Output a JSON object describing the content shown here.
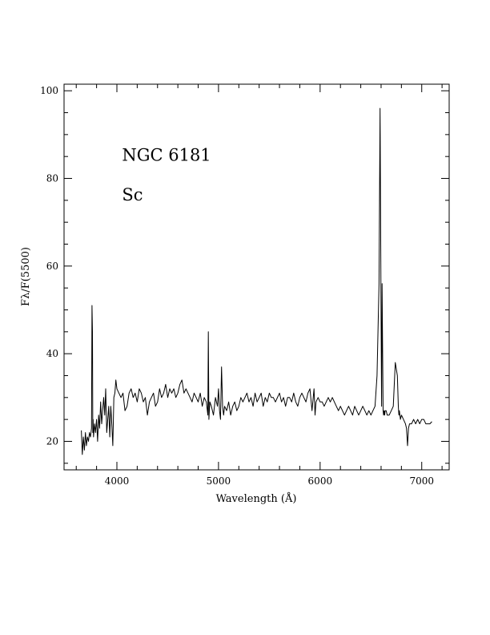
{
  "chart_data": {
    "type": "line",
    "title": "",
    "xlabel": "Wavelength (Å)",
    "ylabel": "Fλ/F(5500)",
    "xlim": [
      3480,
      7270
    ],
    "ylim": [
      13.5,
      101.5
    ],
    "grid": false,
    "legend": "none",
    "x_ticks": [
      4000,
      5000,
      6000,
      7000
    ],
    "x_tick_labels": [
      "4000",
      "5000",
      "6000",
      "7000"
    ],
    "y_ticks": [
      20,
      40,
      60,
      80,
      100
    ],
    "y_tick_labels": [
      "20",
      "40",
      "60",
      "80",
      "100"
    ],
    "annotations": [
      {
        "text": "NGC 6181",
        "x": 4050,
        "y": 84
      },
      {
        "text": "Sc",
        "x": 4050,
        "y": 75
      }
    ],
    "series": [
      {
        "color": "#000000",
        "x": [
          3650,
          3660,
          3670,
          3680,
          3690,
          3700,
          3710,
          3720,
          3730,
          3740,
          3750,
          3755,
          3760,
          3763,
          3766,
          3770,
          3780,
          3790,
          3800,
          3810,
          3820,
          3830,
          3840,
          3850,
          3860,
          3870,
          3880,
          3890,
          3900,
          3910,
          3920,
          3930,
          3940,
          3950,
          3960,
          3970,
          3980,
          3990,
          4000,
          4020,
          4040,
          4060,
          4080,
          4100,
          4120,
          4140,
          4160,
          4180,
          4200,
          4220,
          4240,
          4260,
          4280,
          4300,
          4320,
          4340,
          4360,
          4380,
          4400,
          4420,
          4440,
          4460,
          4480,
          4500,
          4520,
          4540,
          4560,
          4580,
          4600,
          4620,
          4640,
          4660,
          4680,
          4700,
          4720,
          4740,
          4760,
          4780,
          4800,
          4820,
          4840,
          4860,
          4880,
          4895,
          4900,
          4905,
          4915,
          4930,
          4950,
          4970,
          4990,
          5000,
          5010,
          5020,
          5030,
          5040,
          5045,
          5050,
          5055,
          5060,
          5080,
          5100,
          5120,
          5140,
          5160,
          5180,
          5200,
          5220,
          5240,
          5260,
          5280,
          5300,
          5320,
          5340,
          5360,
          5380,
          5400,
          5420,
          5440,
          5460,
          5480,
          5500,
          5520,
          5540,
          5560,
          5580,
          5600,
          5620,
          5640,
          5660,
          5680,
          5700,
          5720,
          5740,
          5760,
          5780,
          5800,
          5820,
          5840,
          5860,
          5880,
          5900,
          5920,
          5940,
          5950,
          5960,
          5980,
          6000,
          6020,
          6040,
          6060,
          6080,
          6100,
          6120,
          6140,
          6160,
          6180,
          6200,
          6220,
          6240,
          6260,
          6280,
          6300,
          6320,
          6340,
          6360,
          6380,
          6400,
          6420,
          6440,
          6460,
          6480,
          6500,
          6520,
          6540,
          6560,
          6580,
          6590,
          6600,
          6605,
          6610,
          6615,
          6620,
          6625,
          6630,
          6635,
          6640,
          6650,
          6660,
          6680,
          6700,
          6720,
          6740,
          6760,
          6770,
          6775,
          6780,
          6790,
          6800,
          6820,
          6840,
          6850,
          6860,
          6870,
          6880,
          6900,
          6920,
          6940,
          6960,
          6980,
          7000,
          7020,
          7040,
          7060,
          7080,
          7100
        ],
        "y": [
          22.5,
          17,
          21,
          18,
          22,
          19,
          21,
          20,
          22,
          21,
          23,
          51,
          45,
          22,
          25,
          21,
          24,
          22,
          25,
          20,
          26,
          23,
          29,
          24,
          27,
          30,
          26,
          32,
          22,
          25,
          28,
          21,
          28,
          24,
          19,
          30,
          31,
          34,
          32,
          31,
          30,
          31,
          27,
          28,
          31,
          32,
          30,
          31,
          29,
          32,
          31,
          29,
          30,
          26,
          29,
          30,
          31,
          28,
          29,
          32,
          30,
          31,
          33,
          30,
          32,
          31,
          32,
          30,
          31,
          33,
          34,
          31,
          32,
          31,
          30,
          29,
          31,
          30,
          29,
          31,
          28,
          30,
          29,
          26,
          45,
          25,
          29,
          28,
          26,
          30,
          28,
          32,
          27,
          25,
          37,
          28,
          27,
          26,
          27,
          28,
          27,
          29,
          26,
          28,
          29,
          27,
          28,
          30,
          29,
          30,
          31,
          29,
          30,
          28,
          31,
          29,
          30,
          31,
          28,
          30,
          29,
          31,
          30,
          30,
          29,
          30,
          31,
          29,
          30,
          28,
          30,
          30,
          29,
          31,
          29,
          28,
          30,
          31,
          30,
          29,
          31,
          32,
          27,
          32,
          26,
          29,
          30,
          29,
          29,
          28,
          29,
          30,
          29,
          30,
          29,
          28,
          27,
          28,
          27,
          26,
          27,
          28,
          27,
          26,
          28,
          27,
          26,
          27,
          28,
          27,
          26,
          27,
          26,
          27,
          28,
          35,
          56,
          96,
          47,
          28,
          56,
          40,
          27,
          26,
          27,
          26,
          27,
          27,
          26,
          26,
          27,
          28,
          38,
          35,
          28,
          26,
          27,
          25,
          26,
          25,
          24,
          23,
          19,
          23,
          24,
          24,
          25,
          24,
          25,
          24,
          25,
          25,
          24,
          24,
          24,
          24.5
        ]
      }
    ]
  }
}
